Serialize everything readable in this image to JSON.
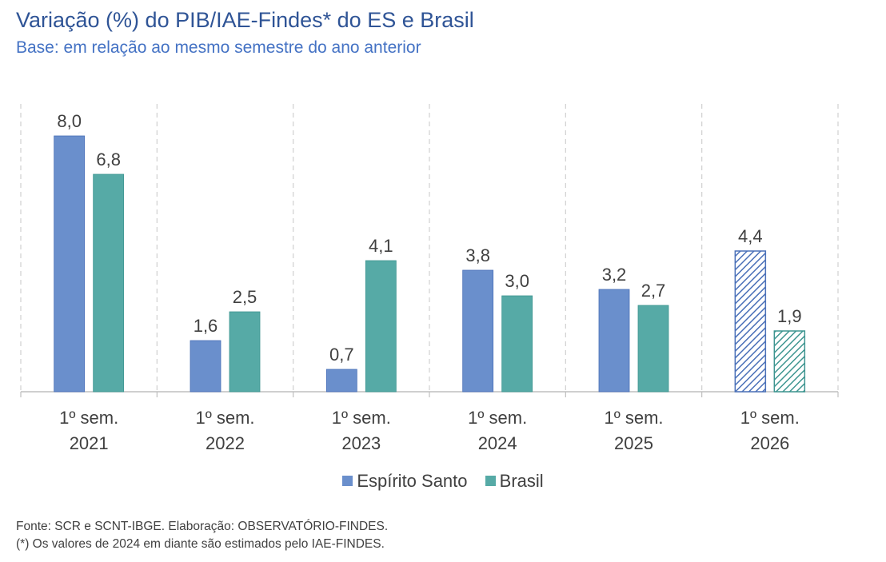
{
  "chart_data": {
    "type": "bar",
    "title": "Variação (%) do PIB/IAE-Findes* do ES e Brasil",
    "subtitle": "Base: em relação ao mesmo semestre do ano anterior",
    "categories": [
      [
        "1º sem.",
        "2021"
      ],
      [
        "1º sem.",
        "2022"
      ],
      [
        "1º sem.",
        "2023"
      ],
      [
        "1º sem.",
        "2024"
      ],
      [
        "1º sem.",
        "2025"
      ],
      [
        "1º sem.",
        "2026"
      ]
    ],
    "series": [
      {
        "name": "Espírito Santo",
        "values": [
          8.0,
          1.6,
          0.7,
          3.8,
          3.2,
          4.4
        ],
        "labels": [
          "8,0",
          "1,6",
          "0,7",
          "3,8",
          "3,2",
          "4,4"
        ]
      },
      {
        "name": "Brasil",
        "values": [
          6.8,
          2.5,
          4.1,
          3.0,
          2.7,
          1.9
        ],
        "labels": [
          "6,8",
          "2,5",
          "4,1",
          "3,0",
          "2,7",
          "1,9"
        ]
      }
    ],
    "hatched_categories": [
      5
    ],
    "ylim": [
      0,
      9
    ],
    "grid": "vertical dashed separators between categories",
    "legend_position": "bottom",
    "colors": {
      "es": "#6a8fcc",
      "brasil": "#56aaa6",
      "es_edge": "#4a70b8",
      "brasil_edge": "#3d9590"
    }
  },
  "footer": {
    "source": "Fonte: SCR e SCNT-IBGE. Elaboração: OBSERVATÓRIO-FINDES.",
    "note": "(*) Os valores de 2024 em diante são estimados pelo IAE-FINDES."
  }
}
